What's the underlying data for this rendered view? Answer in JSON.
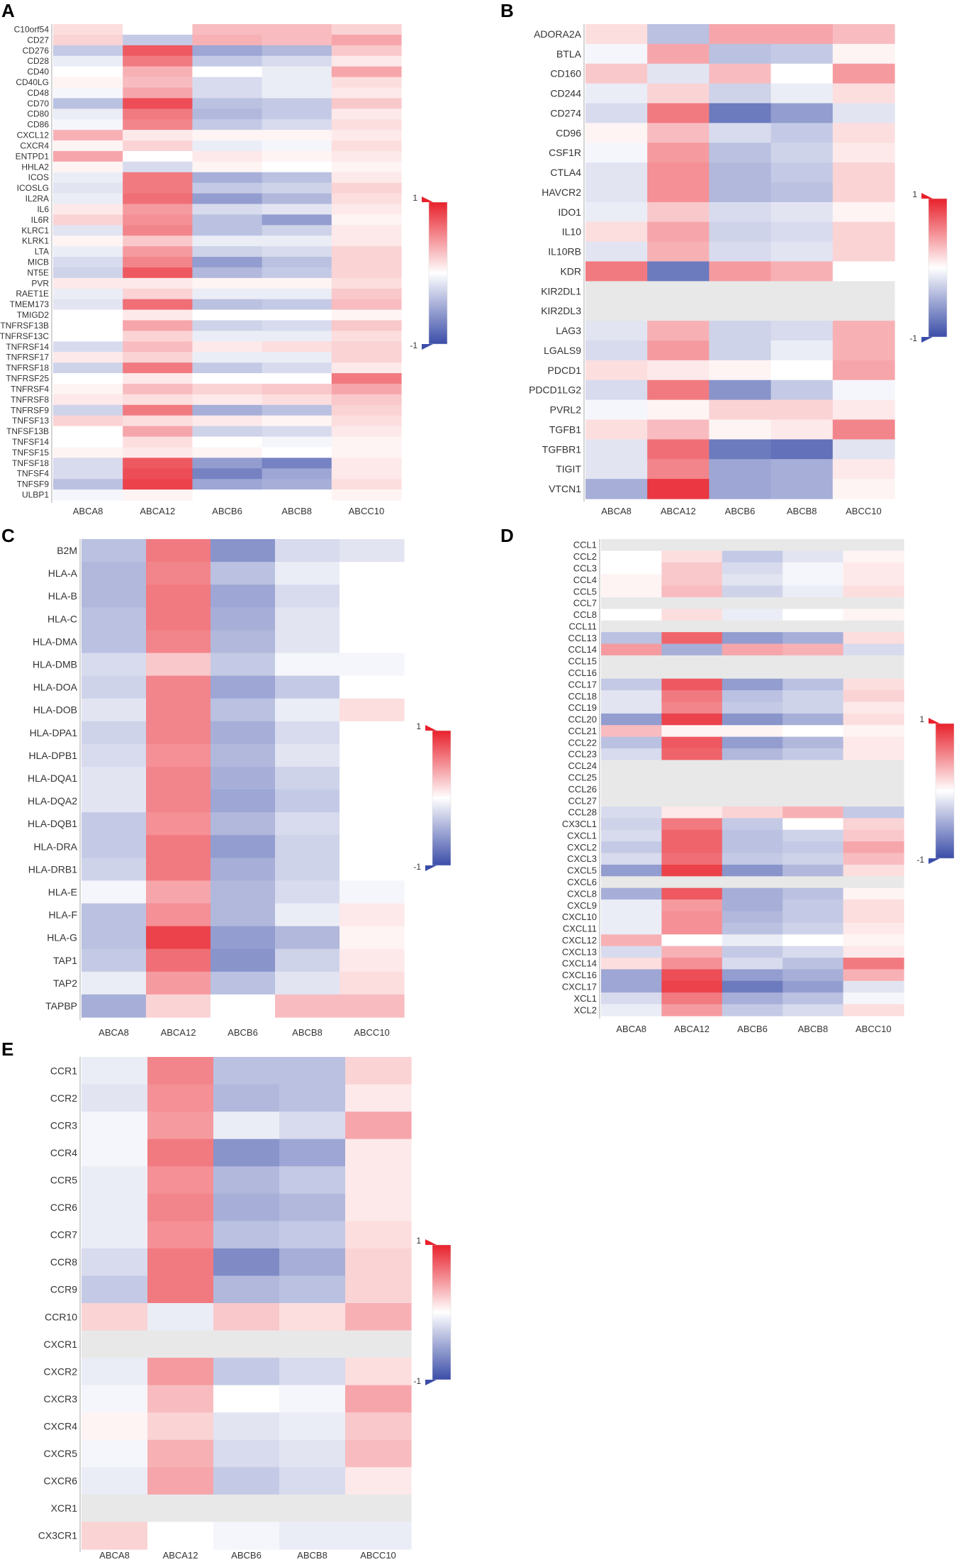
{
  "figure": {
    "colorscale": {
      "max_label": "1",
      "min_label": "-1",
      "high_color": "#e8212c",
      "mid_color": "#ffffff",
      "low_color": "#3b4da8",
      "na_color": "#e8e8e8"
    },
    "columns": [
      "ABCA8",
      "ABCA12",
      "ABCB6",
      "ABCB8",
      "ABCC10"
    ]
  },
  "chart_data": [
    {
      "type": "heatmap",
      "panel": "A",
      "columns": [
        "ABCA8",
        "ABCA12",
        "ABCB6",
        "ABCB8",
        "ABCC10"
      ],
      "colorbar": {
        "min": -1,
        "max": 1
      },
      "rows": [
        "C10orf54",
        "CD27",
        "CD276",
        "CD28",
        "CD40",
        "CD40LG",
        "CD48",
        "CD70",
        "CD80",
        "CD86",
        "CXCL12",
        "CXCR4",
        "ENTPD1",
        "HHLA2",
        "ICOS",
        "ICOSLG",
        "IL2RA",
        "IL6",
        "IL6R",
        "KLRC1",
        "KLRK1",
        "LTA",
        "MICB",
        "NT5E",
        "PVR",
        "RAET1E",
        "TMEM173",
        "TMIGD2",
        "TNFRSF13B",
        "TNFRSF13C",
        "TNFRSF14",
        "TNFRSF17",
        "TNFRSF18",
        "TNFRSF25",
        "TNFRSF4",
        "TNFRSF8",
        "TNFRSF9",
        "TNFSF13",
        "TNFSF13B",
        "TNFSF14",
        "TNFSF15",
        "TNFSF18",
        "TNFSF4",
        "TNFSF9",
        "ULBP1"
      ],
      "values": [
        [
          0.15,
          0.0,
          0.3,
          0.3,
          0.2
        ],
        [
          0.2,
          -0.3,
          0.35,
          0.3,
          0.4
        ],
        [
          -0.3,
          0.75,
          -0.5,
          -0.4,
          0.25
        ],
        [
          -0.1,
          0.6,
          -0.3,
          -0.2,
          0.1
        ],
        [
          0.0,
          0.35,
          0.0,
          -0.1,
          0.4
        ],
        [
          0.05,
          0.3,
          -0.2,
          -0.1,
          0.15
        ],
        [
          -0.05,
          0.4,
          -0.2,
          -0.1,
          0.1
        ],
        [
          -0.35,
          0.8,
          -0.35,
          -0.3,
          0.25
        ],
        [
          -0.1,
          0.6,
          -0.4,
          -0.3,
          0.1
        ],
        [
          -0.05,
          0.55,
          -0.3,
          -0.2,
          0.15
        ],
        [
          0.35,
          0.1,
          0.05,
          0.05,
          0.1
        ],
        [
          0.05,
          0.2,
          -0.1,
          -0.05,
          0.15
        ],
        [
          0.4,
          0.0,
          0.1,
          0.05,
          0.1
        ],
        [
          0.05,
          -0.2,
          0.05,
          0.0,
          0.05
        ],
        [
          -0.1,
          0.6,
          -0.45,
          -0.35,
          0.1
        ],
        [
          -0.15,
          0.6,
          -0.3,
          -0.25,
          0.2
        ],
        [
          -0.1,
          0.65,
          -0.55,
          -0.4,
          0.15
        ],
        [
          0.1,
          0.45,
          -0.2,
          -0.15,
          0.1
        ],
        [
          0.2,
          0.5,
          -0.35,
          -0.55,
          0.05
        ],
        [
          -0.15,
          0.55,
          -0.35,
          -0.25,
          0.1
        ],
        [
          0.05,
          0.25,
          -0.1,
          -0.1,
          0.1
        ],
        [
          -0.1,
          0.45,
          -0.25,
          -0.2,
          0.2
        ],
        [
          -0.2,
          0.55,
          -0.55,
          -0.35,
          0.2
        ],
        [
          -0.25,
          0.75,
          -0.4,
          -0.3,
          0.2
        ],
        [
          0.1,
          0.1,
          0.05,
          0.05,
          0.15
        ],
        [
          -0.1,
          0.2,
          -0.1,
          -0.1,
          0.25
        ],
        [
          -0.15,
          0.65,
          -0.35,
          -0.3,
          0.3
        ],
        [
          0.0,
          0.1,
          0.0,
          0.0,
          0.05
        ],
        [
          0.0,
          0.4,
          -0.25,
          -0.2,
          0.25
        ],
        [
          0.0,
          0.2,
          -0.1,
          -0.1,
          0.15
        ],
        [
          -0.2,
          0.3,
          0.1,
          0.15,
          0.2
        ],
        [
          0.1,
          0.2,
          -0.1,
          -0.1,
          0.2
        ],
        [
          -0.25,
          0.6,
          -0.3,
          -0.2,
          0.1
        ],
        [
          0.0,
          0.1,
          0.0,
          0.0,
          0.6
        ],
        [
          0.05,
          0.3,
          0.2,
          0.25,
          0.4
        ],
        [
          0.1,
          0.15,
          0.1,
          0.15,
          0.25
        ],
        [
          -0.25,
          0.6,
          -0.45,
          -0.35,
          0.2
        ],
        [
          0.2,
          0.15,
          0.1,
          0.05,
          0.15
        ],
        [
          0.0,
          0.4,
          -0.25,
          -0.2,
          0.1
        ],
        [
          0.0,
          0.15,
          0.0,
          -0.05,
          0.05
        ],
        [
          0.05,
          0.1,
          0.05,
          0.0,
          0.05
        ],
        [
          -0.2,
          0.75,
          -0.55,
          -0.7,
          0.1
        ],
        [
          -0.2,
          0.8,
          -0.7,
          -0.5,
          0.1
        ],
        [
          -0.35,
          0.85,
          -0.5,
          -0.45,
          0.15
        ],
        [
          -0.05,
          0.05,
          0.0,
          0.0,
          0.05
        ]
      ]
    },
    {
      "type": "heatmap",
      "panel": "B",
      "columns": [
        "ABCA8",
        "ABCA12",
        "ABCB6",
        "ABCB8",
        "ABCC10"
      ],
      "colorbar": {
        "min": -1,
        "max": 1
      },
      "rows": [
        "ADORA2A",
        "BTLA",
        "CD160",
        "CD244",
        "CD274",
        "CD96",
        "CSF1R",
        "CTLA4",
        "HAVCR2",
        "IDO1",
        "IL10",
        "IL10RB",
        "KDR",
        "KIR2DL1",
        "KIR2DL3",
        "LAG3",
        "LGALS9",
        "PDCD1",
        "PDCD1LG2",
        "PVRL2",
        "TGFB1",
        "TGFBR1",
        "TIGIT",
        "VTCN1"
      ],
      "values": [
        [
          0.15,
          -0.35,
          0.4,
          0.4,
          0.3
        ],
        [
          -0.05,
          0.4,
          -0.35,
          -0.3,
          0.05
        ],
        [
          0.25,
          -0.15,
          0.3,
          0.0,
          0.45
        ],
        [
          -0.1,
          0.2,
          -0.25,
          -0.1,
          0.15
        ],
        [
          -0.2,
          0.6,
          -0.75,
          -0.55,
          -0.15
        ],
        [
          0.05,
          0.3,
          -0.2,
          -0.3,
          0.15
        ],
        [
          -0.05,
          0.45,
          -0.35,
          -0.25,
          0.1
        ],
        [
          -0.15,
          0.5,
          -0.4,
          -0.3,
          0.2
        ],
        [
          -0.15,
          0.5,
          -0.4,
          -0.35,
          0.2
        ],
        [
          -0.1,
          0.25,
          -0.2,
          -0.15,
          0.05
        ],
        [
          0.15,
          0.4,
          -0.25,
          -0.2,
          0.2
        ],
        [
          -0.15,
          0.35,
          -0.2,
          -0.15,
          0.2
        ],
        [
          0.6,
          -0.75,
          0.45,
          0.35,
          0.0
        ],
        [
          null,
          null,
          null,
          null,
          null
        ],
        [
          null,
          null,
          null,
          null,
          null
        ],
        [
          -0.15,
          0.35,
          -0.25,
          -0.2,
          0.35
        ],
        [
          -0.2,
          0.45,
          -0.25,
          -0.1,
          0.35
        ],
        [
          0.15,
          0.1,
          0.05,
          0.0,
          0.4
        ],
        [
          -0.2,
          0.6,
          -0.6,
          -0.3,
          -0.05
        ],
        [
          -0.05,
          0.05,
          0.2,
          0.2,
          0.1
        ],
        [
          0.15,
          0.3,
          0.05,
          0.1,
          0.55
        ],
        [
          -0.15,
          0.65,
          -0.75,
          -0.8,
          -0.15
        ],
        [
          -0.15,
          0.55,
          -0.5,
          -0.45,
          0.1
        ],
        [
          -0.45,
          0.9,
          -0.5,
          -0.45,
          0.05
        ]
      ]
    },
    {
      "type": "heatmap",
      "panel": "C",
      "columns": [
        "ABCA8",
        "ABCA12",
        "ABCB6",
        "ABCB8",
        "ABCC10"
      ],
      "colorbar": {
        "min": -1,
        "max": 1
      },
      "rows": [
        "B2M",
        "HLA-A",
        "HLA-B",
        "HLA-C",
        "HLA-DMA",
        "HLA-DMB",
        "HLA-DOA",
        "HLA-DOB",
        "HLA-DPA1",
        "HLA-DPB1",
        "HLA-DQA1",
        "HLA-DQA2",
        "HLA-DQB1",
        "HLA-DRA",
        "HLA-DRB1",
        "HLA-E",
        "HLA-F",
        "HLA-G",
        "TAP1",
        "TAP2",
        "TAPBP"
      ],
      "values": [
        [
          -0.35,
          0.6,
          -0.6,
          -0.2,
          -0.15
        ],
        [
          -0.4,
          0.55,
          -0.35,
          -0.1,
          0.0
        ],
        [
          -0.4,
          0.6,
          -0.5,
          -0.2,
          0.0
        ],
        [
          -0.35,
          0.6,
          -0.45,
          -0.15,
          0.0
        ],
        [
          -0.35,
          0.55,
          -0.4,
          -0.15,
          0.0
        ],
        [
          -0.2,
          0.25,
          -0.3,
          -0.05,
          -0.05
        ],
        [
          -0.25,
          0.55,
          -0.5,
          -0.3,
          0.0
        ],
        [
          -0.15,
          0.55,
          -0.35,
          -0.1,
          0.15
        ],
        [
          -0.25,
          0.55,
          -0.45,
          -0.2,
          0.0
        ],
        [
          -0.2,
          0.5,
          -0.4,
          -0.15,
          0.0
        ],
        [
          -0.15,
          0.55,
          -0.45,
          -0.25,
          0.0
        ],
        [
          -0.15,
          0.55,
          -0.5,
          -0.3,
          0.0
        ],
        [
          -0.3,
          0.5,
          -0.4,
          -0.2,
          0.0
        ],
        [
          -0.3,
          0.6,
          -0.55,
          -0.25,
          0.0
        ],
        [
          -0.25,
          0.6,
          -0.45,
          -0.25,
          0.0
        ],
        [
          -0.05,
          0.4,
          -0.4,
          -0.2,
          -0.05
        ],
        [
          -0.35,
          0.5,
          -0.4,
          -0.1,
          0.1
        ],
        [
          -0.35,
          0.85,
          -0.55,
          -0.4,
          0.05
        ],
        [
          -0.3,
          0.65,
          -0.6,
          -0.25,
          0.1
        ],
        [
          -0.1,
          0.45,
          -0.35,
          -0.15,
          0.15
        ],
        [
          -0.45,
          0.2,
          0.0,
          0.3,
          0.3
        ]
      ]
    },
    {
      "type": "heatmap",
      "panel": "D",
      "columns": [
        "ABCA8",
        "ABCA12",
        "ABCB6",
        "ABCB8",
        "ABCC10"
      ],
      "colorbar": {
        "min": -1,
        "max": 1
      },
      "rows": [
        "CCL1",
        "CCL2",
        "CCL3",
        "CCL4",
        "CCL5",
        "CCL7",
        "CCL8",
        "CCL11",
        "CCL13",
        "CCL14",
        "CCL15",
        "CCL16",
        "CCL17",
        "CCL18",
        "CCL19",
        "CCL20",
        "CCL21",
        "CCL22",
        "CCL23",
        "CCL24",
        "CCL25",
        "CCL26",
        "CCL27",
        "CCL28",
        "CX3CL1",
        "CXCL1",
        "CXCL2",
        "CXCL3",
        "CXCL5",
        "CXCL6",
        "CXCL8",
        "CXCL9",
        "CXCL10",
        "CXCL11",
        "CXCL12",
        "CXCL13",
        "CXCL14",
        "CXCL16",
        "CXCL17",
        "XCL1",
        "XCL2"
      ],
      "values": [
        [
          null,
          null,
          null,
          null,
          null
        ],
        [
          0.0,
          0.15,
          -0.3,
          -0.15,
          0.05
        ],
        [
          0.0,
          0.25,
          -0.2,
          -0.05,
          0.1
        ],
        [
          0.05,
          0.25,
          -0.15,
          -0.05,
          0.1
        ],
        [
          0.05,
          0.3,
          -0.25,
          -0.1,
          0.15
        ],
        [
          null,
          null,
          null,
          null,
          null
        ],
        [
          0.0,
          0.15,
          -0.1,
          0.0,
          0.05
        ],
        [
          null,
          null,
          null,
          null,
          null
        ],
        [
          -0.35,
          0.7,
          -0.55,
          -0.45,
          0.15
        ],
        [
          0.45,
          -0.45,
          0.4,
          0.35,
          -0.2
        ],
        [
          null,
          null,
          null,
          null,
          null
        ],
        [
          null,
          null,
          null,
          null,
          null
        ],
        [
          -0.3,
          0.75,
          -0.55,
          -0.35,
          0.15
        ],
        [
          -0.15,
          0.6,
          -0.35,
          -0.25,
          0.2
        ],
        [
          -0.15,
          0.55,
          -0.3,
          -0.25,
          0.1
        ],
        [
          -0.55,
          0.85,
          -0.6,
          -0.45,
          0.15
        ],
        [
          0.3,
          0.05,
          0.05,
          0.0,
          0.05
        ],
        [
          -0.35,
          0.75,
          -0.55,
          -0.4,
          0.1
        ],
        [
          -0.2,
          0.7,
          -0.4,
          -0.3,
          0.1
        ],
        [
          null,
          null,
          null,
          null,
          null
        ],
        [
          null,
          null,
          null,
          null,
          null
        ],
        [
          null,
          null,
          null,
          null,
          null
        ],
        [
          null,
          null,
          null,
          null,
          null
        ],
        [
          -0.2,
          0.1,
          0.2,
          0.35,
          -0.3
        ],
        [
          -0.25,
          0.6,
          -0.3,
          0.0,
          0.2
        ],
        [
          -0.2,
          0.7,
          -0.35,
          -0.25,
          0.25
        ],
        [
          -0.3,
          0.7,
          -0.35,
          -0.3,
          0.4
        ],
        [
          -0.2,
          0.65,
          -0.3,
          -0.25,
          0.3
        ],
        [
          -0.55,
          0.85,
          -0.6,
          -0.4,
          0.15
        ],
        [
          null,
          null,
          null,
          null,
          null
        ],
        [
          -0.45,
          0.75,
          -0.45,
          -0.35,
          0.05
        ],
        [
          -0.1,
          0.45,
          -0.45,
          -0.3,
          0.15
        ],
        [
          -0.1,
          0.5,
          -0.4,
          -0.3,
          0.15
        ],
        [
          -0.1,
          0.5,
          -0.35,
          -0.25,
          0.1
        ],
        [
          0.35,
          0.0,
          -0.1,
          0.0,
          0.05
        ],
        [
          -0.2,
          0.35,
          -0.3,
          -0.2,
          0.1
        ],
        [
          0.15,
          0.5,
          -0.2,
          -0.35,
          0.6
        ],
        [
          -0.5,
          0.8,
          -0.55,
          -0.45,
          0.35
        ],
        [
          -0.5,
          0.85,
          -0.75,
          -0.55,
          -0.15
        ],
        [
          -0.2,
          0.6,
          -0.45,
          -0.35,
          -0.05
        ],
        [
          -0.1,
          0.45,
          -0.3,
          -0.2,
          0.15
        ]
      ]
    },
    {
      "type": "heatmap",
      "panel": "E",
      "columns": [
        "ABCA8",
        "ABCA12",
        "ABCB6",
        "ABCB8",
        "ABCC10"
      ],
      "colorbar": {
        "min": -1,
        "max": 1
      },
      "rows": [
        "CCR1",
        "CCR2",
        "CCR3",
        "CCR4",
        "CCR5",
        "CCR6",
        "CCR7",
        "CCR8",
        "CCR9",
        "CCR10",
        "CXCR1",
        "CXCR2",
        "CXCR3",
        "CXCR4",
        "CXCR5",
        "CXCR6",
        "XCR1",
        "CX3CR1"
      ],
      "values": [
        [
          -0.1,
          0.55,
          -0.35,
          -0.35,
          0.2
        ],
        [
          -0.15,
          0.5,
          -0.4,
          -0.35,
          0.1
        ],
        [
          -0.05,
          0.45,
          -0.1,
          -0.2,
          0.4
        ],
        [
          -0.05,
          0.6,
          -0.6,
          -0.5,
          0.1
        ],
        [
          -0.1,
          0.5,
          -0.4,
          -0.3,
          0.1
        ],
        [
          -0.1,
          0.55,
          -0.45,
          -0.4,
          0.1
        ],
        [
          -0.1,
          0.5,
          -0.35,
          -0.3,
          0.15
        ],
        [
          -0.2,
          0.6,
          -0.65,
          -0.45,
          0.2
        ],
        [
          -0.3,
          0.6,
          -0.4,
          -0.35,
          0.2
        ],
        [
          0.2,
          -0.1,
          0.25,
          0.15,
          0.35
        ],
        [
          null,
          null,
          null,
          null,
          null
        ],
        [
          -0.1,
          0.45,
          -0.3,
          -0.2,
          0.15
        ],
        [
          -0.05,
          0.3,
          0.0,
          -0.05,
          0.4
        ],
        [
          0.05,
          0.2,
          -0.15,
          -0.1,
          0.25
        ],
        [
          -0.05,
          0.35,
          -0.2,
          -0.15,
          0.3
        ],
        [
          -0.1,
          0.4,
          -0.3,
          -0.2,
          0.1
        ],
        [
          null,
          null,
          null,
          null,
          null
        ],
        [
          0.2,
          0.0,
          -0.05,
          -0.1,
          -0.1
        ]
      ]
    }
  ]
}
